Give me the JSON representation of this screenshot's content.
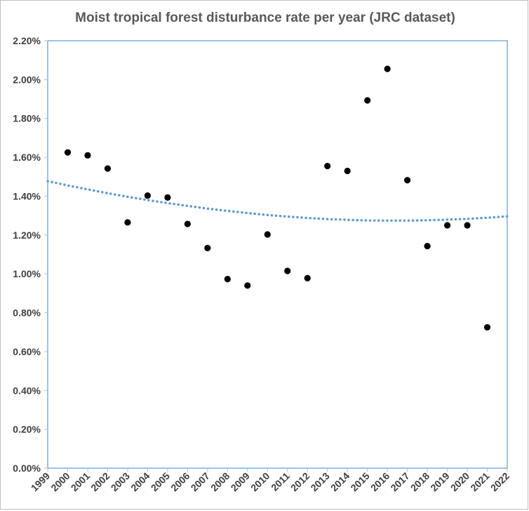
{
  "chart_data": {
    "type": "scatter",
    "title": "Moist tropical forest disturbance rate per year (JRC dataset)",
    "xlabel": "",
    "ylabel": "",
    "xlim": [
      1999,
      2022
    ],
    "ylim": [
      0,
      0.022
    ],
    "x_ticks": [
      "1999",
      "2000",
      "2001",
      "2002",
      "2003",
      "2004",
      "2005",
      "2006",
      "2007",
      "2008",
      "2009",
      "2010",
      "2011",
      "2012",
      "2013",
      "2014",
      "2015",
      "2016",
      "2017",
      "2018",
      "2019",
      "2020",
      "2021",
      "2022"
    ],
    "y_ticks": [
      "0.00%",
      "0.20%",
      "0.40%",
      "0.60%",
      "0.80%",
      "1.00%",
      "1.20%",
      "1.40%",
      "1.60%",
      "1.80%",
      "2.00%",
      "2.20%"
    ],
    "grid": false,
    "legend": "none",
    "series": [
      {
        "x": [
          2000,
          2001,
          2002,
          2003,
          2004,
          2005,
          2006,
          2007,
          2008,
          2009,
          2010,
          2011,
          2012,
          2013,
          2014,
          2015,
          2016,
          2017,
          2018,
          2019,
          2020,
          2021
        ],
        "y": [
          0.01625,
          0.0161,
          0.01542,
          0.01265,
          0.01403,
          0.01393,
          0.01257,
          0.01133,
          0.00973,
          0.0094,
          0.01203,
          0.01015,
          0.00978,
          0.01555,
          0.0153,
          0.01893,
          0.02055,
          0.01482,
          0.01143,
          0.0125,
          0.0125,
          0.00725
        ],
        "marker_color": "#000000"
      }
    ],
    "trendline": {
      "style": "dotted",
      "color": "#5b9bd5",
      "x": [
        1999,
        2000,
        2001,
        2002,
        2003,
        2004,
        2005,
        2006,
        2007,
        2008,
        2009,
        2010,
        2011,
        2012,
        2013,
        2014,
        2015,
        2016,
        2017,
        2018,
        2019,
        2020,
        2021,
        2022
      ],
      "y": [
        0.01477,
        0.01455,
        0.01435,
        0.01415,
        0.01397,
        0.0138,
        0.01364,
        0.0135,
        0.01336,
        0.01324,
        0.01313,
        0.01303,
        0.01295,
        0.01288,
        0.01282,
        0.01278,
        0.01275,
        0.01274,
        0.01274,
        0.01276,
        0.01279,
        0.01283,
        0.01289,
        0.01296
      ]
    },
    "colors": {
      "plot_border": "#5b9bd5",
      "axis": "#bfbfbf",
      "text": "#404040"
    }
  }
}
